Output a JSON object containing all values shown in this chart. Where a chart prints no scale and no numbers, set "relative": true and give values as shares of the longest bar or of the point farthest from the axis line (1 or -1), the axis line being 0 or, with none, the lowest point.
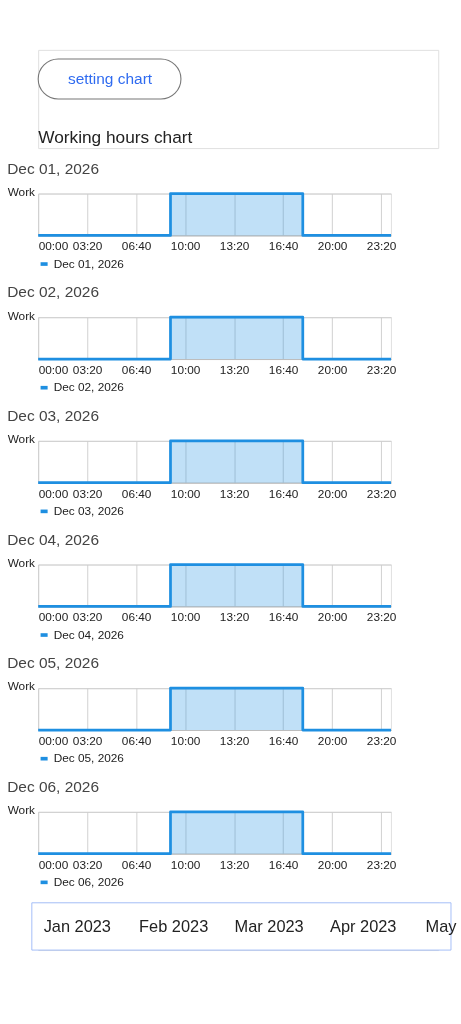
{
  "chart_data": [
    {
      "type": "step",
      "title": "Dec 01, 2026",
      "annotations": [
        "setting chart",
        "Working hours chart"
      ],
      "x": [
        0,
        9,
        18,
        24
      ],
      "relative": true,
      "ylabel": "Work",
      "xlim": [
        0,
        24
      ],
      "xticks": [
        {
          "value": 0,
          "label": "00:00"
        },
        {
          "value": 3.333,
          "label": "03:20"
        },
        {
          "value": 6.667,
          "label": "06:40"
        },
        {
          "value": 10,
          "label": "10:00"
        },
        {
          "value": 13.333,
          "label": "13:20"
        },
        {
          "value": 16.667,
          "label": "16:40"
        },
        {
          "value": 20,
          "label": "20:00"
        },
        {
          "value": 23.333,
          "label": "23:20"
        }
      ],
      "grid": true,
      "legend": "bottom",
      "series": [
        {
          "name": "Dec 01, 2026",
          "color": "#1e8fe1",
          "values": [
            0,
            1,
            0,
            0
          ]
        }
      ]
    },
    {
      "type": "step",
      "title": "Dec 02, 2026",
      "x": [
        0,
        9,
        18,
        24
      ],
      "relative": true,
      "ylabel": "Work",
      "xlim": [
        0,
        24
      ],
      "xticks": [
        {
          "value": 0,
          "label": "00:00"
        },
        {
          "value": 3.333,
          "label": "03:20"
        },
        {
          "value": 6.667,
          "label": "06:40"
        },
        {
          "value": 10,
          "label": "10:00"
        },
        {
          "value": 13.333,
          "label": "13:20"
        },
        {
          "value": 16.667,
          "label": "16:40"
        },
        {
          "value": 20,
          "label": "20:00"
        },
        {
          "value": 23.333,
          "label": "23:20"
        }
      ],
      "grid": true,
      "legend": "bottom",
      "series": [
        {
          "name": "Dec 02, 2026",
          "color": "#1e8fe1",
          "values": [
            0,
            1,
            0,
            0
          ]
        }
      ]
    },
    {
      "type": "step",
      "title": "Dec 03, 2026",
      "x": [
        0,
        9,
        18,
        24
      ],
      "relative": true,
      "ylabel": "Work",
      "xlim": [
        0,
        24
      ],
      "xticks": [
        {
          "value": 0,
          "label": "00:00"
        },
        {
          "value": 3.333,
          "label": "03:20"
        },
        {
          "value": 6.667,
          "label": "06:40"
        },
        {
          "value": 10,
          "label": "10:00"
        },
        {
          "value": 13.333,
          "label": "13:20"
        },
        {
          "value": 16.667,
          "label": "16:40"
        },
        {
          "value": 20,
          "label": "20:00"
        },
        {
          "value": 23.333,
          "label": "23:20"
        }
      ],
      "grid": true,
      "legend": "bottom",
      "series": [
        {
          "name": "Dec 03, 2026",
          "color": "#1e8fe1",
          "values": [
            0,
            1,
            0,
            0
          ]
        }
      ]
    },
    {
      "type": "step",
      "title": "Dec 04, 2026",
      "x": [
        0,
        9,
        18,
        24
      ],
      "relative": true,
      "ylabel": "Work",
      "xlim": [
        0,
        24
      ],
      "xticks": [
        {
          "value": 0,
          "label": "00:00"
        },
        {
          "value": 3.333,
          "label": "03:20"
        },
        {
          "value": 6.667,
          "label": "06:40"
        },
        {
          "value": 10,
          "label": "10:00"
        },
        {
          "value": 13.333,
          "label": "13:20"
        },
        {
          "value": 16.667,
          "label": "16:40"
        },
        {
          "value": 20,
          "label": "20:00"
        },
        {
          "value": 23.333,
          "label": "23:20"
        }
      ],
      "grid": true,
      "legend": "bottom",
      "series": [
        {
          "name": "Dec 04, 2026",
          "color": "#1e8fe1",
          "values": [
            0,
            1,
            0,
            0
          ]
        }
      ]
    },
    {
      "type": "step",
      "title": "Dec 05, 2026",
      "x": [
        0,
        9,
        18,
        24
      ],
      "relative": true,
      "ylabel": "Work",
      "xlim": [
        0,
        24
      ],
      "xticks": [
        {
          "value": 0,
          "label": "00:00"
        },
        {
          "value": 3.333,
          "label": "03:20"
        },
        {
          "value": 6.667,
          "label": "06:40"
        },
        {
          "value": 10,
          "label": "10:00"
        },
        {
          "value": 13.333,
          "label": "13:20"
        },
        {
          "value": 16.667,
          "label": "16:40"
        },
        {
          "value": 20,
          "label": "20:00"
        },
        {
          "value": 23.333,
          "label": "23:20"
        }
      ],
      "grid": true,
      "legend": "bottom",
      "series": [
        {
          "name": "Dec 05, 2026",
          "color": "#1e8fe1",
          "values": [
            0,
            1,
            0,
            0
          ]
        }
      ]
    },
    {
      "type": "step",
      "title": "Dec 06, 2026",
      "annotations": [
        "Jan 2023",
        "Feb 2023",
        "Mar 2023",
        "Apr 2023",
        "May"
      ],
      "x": [
        0,
        9,
        18,
        24
      ],
      "relative": true,
      "ylabel": "Work",
      "xlim": [
        0,
        24
      ],
      "xticks": [
        {
          "value": 0,
          "label": "00:00"
        },
        {
          "value": 3.333,
          "label": "03:20"
        },
        {
          "value": 6.667,
          "label": "06:40"
        },
        {
          "value": 10,
          "label": "10:00"
        },
        {
          "value": 13.333,
          "label": "13:20"
        },
        {
          "value": 16.667,
          "label": "16:40"
        },
        {
          "value": 20,
          "label": "20:00"
        },
        {
          "value": 23.333,
          "label": "23:20"
        }
      ],
      "grid": true,
      "legend": "bottom",
      "series": [
        {
          "name": "Dec 06, 2026",
          "color": "#1e8fe1",
          "values": [
            0,
            1,
            0,
            0
          ]
        }
      ]
    }
  ]
}
